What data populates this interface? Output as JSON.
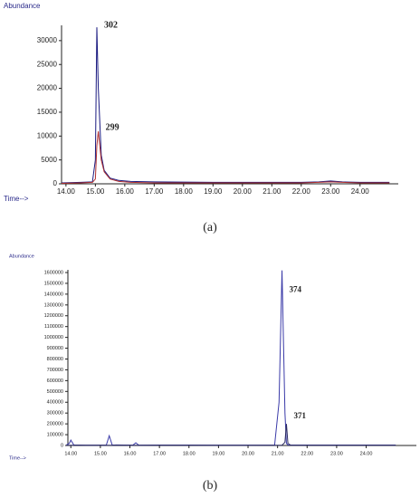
{
  "chart_data": [
    {
      "type": "line",
      "ylabel": "Abundance",
      "xlabel": "Time-->",
      "caption": "(a)",
      "x": [
        13.85,
        14.5,
        14.9,
        15.0,
        15.05,
        15.1,
        15.2,
        15.3,
        15.5,
        15.8,
        16.2,
        17,
        18,
        19,
        20,
        21,
        22,
        22.6,
        23,
        23.4,
        24,
        25
      ],
      "series": [
        {
          "name": "302",
          "color": "#1a1a80",
          "values": [
            200,
            300,
            400,
            5000,
            32800,
            20000,
            6000,
            2800,
            1200,
            700,
            500,
            400,
            350,
            300,
            300,
            300,
            300,
            400,
            600,
            400,
            300,
            300
          ]
        },
        {
          "name": "299",
          "color": "#b03030",
          "values": [
            100,
            200,
            300,
            1000,
            8000,
            11000,
            5000,
            2500,
            1000,
            500,
            300,
            200,
            200,
            200,
            200,
            200,
            200,
            300,
            400,
            300,
            200,
            200
          ]
        }
      ],
      "xlim": [
        13.85,
        25.3
      ],
      "xticks": [
        {
          "value": 14,
          "label": "14.00"
        },
        {
          "value": 15,
          "label": "15.00"
        },
        {
          "value": 16,
          "label": "16.00"
        },
        {
          "value": 17,
          "label": "17.00"
        },
        {
          "value": 18,
          "label": "18.00"
        },
        {
          "value": 19,
          "label": "19.00"
        },
        {
          "value": 20,
          "label": "20.00"
        },
        {
          "value": 21,
          "label": "21.00"
        },
        {
          "value": 22,
          "label": "22.00"
        },
        {
          "value": 23,
          "label": "23.00"
        },
        {
          "value": 24,
          "label": "24.00"
        }
      ],
      "ylim": [
        0,
        33200
      ],
      "yticks": [
        0,
        5000,
        10000,
        15000,
        20000,
        25000,
        30000
      ]
    },
    {
      "type": "line",
      "ylabel": "Abundance",
      "xlabel": "Time-->",
      "caption": "(b)",
      "x": [
        13.85,
        13.95,
        14.0,
        14.1,
        14.5,
        15.2,
        15.3,
        15.4,
        16.1,
        16.2,
        16.3,
        17,
        18,
        19,
        20,
        20.9,
        21.05,
        21.15,
        21.25,
        21.3,
        21.35,
        21.45,
        22,
        23,
        24,
        25
      ],
      "series": [
        {
          "name": "374",
          "color": "#3a3aa8",
          "values": [
            5000,
            20000,
            50000,
            5000,
            3000,
            3000,
            90000,
            5000,
            3000,
            25000,
            3000,
            4000,
            4000,
            3000,
            3000,
            4000,
            400000,
            1620000,
            300000,
            20000,
            5000,
            4000,
            4000,
            4000,
            4000,
            4000
          ]
        },
        {
          "name": "371",
          "color": "#2a2a60",
          "values": [
            2000,
            2000,
            2000,
            2000,
            2000,
            2000,
            2000,
            2000,
            2000,
            2000,
            2000,
            2000,
            2000,
            2000,
            2000,
            2000,
            2000,
            2000,
            30000,
            200000,
            20000,
            2000,
            2000,
            2000,
            2000,
            2000
          ]
        }
      ],
      "xlim": [
        13.9,
        25.7
      ],
      "xticks": [
        {
          "value": 14,
          "label": "14.00"
        },
        {
          "value": 15,
          "label": "15.00"
        },
        {
          "value": 16,
          "label": "16.00"
        },
        {
          "value": 17,
          "label": "17.00"
        },
        {
          "value": 18,
          "label": "18.00"
        },
        {
          "value": 19,
          "label": "19.00"
        },
        {
          "value": 20,
          "label": "20.00"
        },
        {
          "value": 21,
          "label": "21.00"
        },
        {
          "value": 22,
          "label": "22.00"
        },
        {
          "value": 23,
          "label": "23.00"
        },
        {
          "value": 24,
          "label": "24.00"
        }
      ],
      "ylim": [
        0,
        1625000
      ],
      "yticks": [
        0,
        100000,
        200000,
        300000,
        400000,
        500000,
        600000,
        700000,
        800000,
        900000,
        1000000,
        1100000,
        1200000,
        1300000,
        1400000,
        1500000,
        1600000
      ]
    }
  ]
}
